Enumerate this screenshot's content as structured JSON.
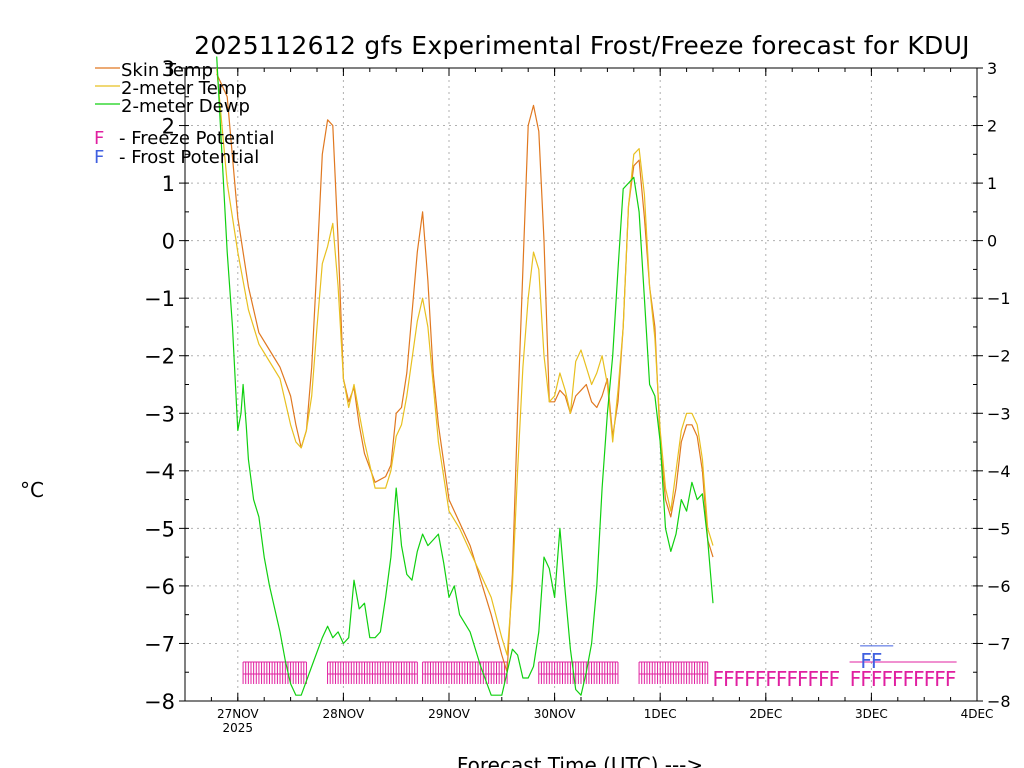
{
  "chart_data": {
    "type": "line",
    "title": "2025112612 gfs Experimental Frost/Freeze forecast for KDUJ",
    "xlabel": "Forecast Time (UTC) --->",
    "ylabel": "°C",
    "ylim": [
      -8,
      3
    ],
    "xlim": [
      -0.5,
      7.0
    ],
    "y_ticks": [
      -8,
      -7,
      -6,
      -5,
      -4,
      -3,
      -2,
      -1,
      0,
      1,
      2,
      3
    ],
    "x_ticks": [
      {
        "value": 0,
        "label": "27NOV",
        "sublabel": "2025"
      },
      {
        "value": 1,
        "label": "28NOV",
        "sublabel": ""
      },
      {
        "value": 2,
        "label": "29NOV",
        "sublabel": ""
      },
      {
        "value": 3,
        "label": "30NOV",
        "sublabel": ""
      },
      {
        "value": 4,
        "label": "1DEC",
        "sublabel": ""
      },
      {
        "value": 5,
        "label": "2DEC",
        "sublabel": ""
      },
      {
        "value": 6,
        "label": "3DEC",
        "sublabel": ""
      },
      {
        "value": 7,
        "label": "4DEC",
        "sublabel": ""
      }
    ],
    "grid": true,
    "legend": [
      {
        "label": "Skin Temp",
        "color": "#e07820"
      },
      {
        "label": "2-meter Temp",
        "color": "#e8c020"
      },
      {
        "label": "2-meter Dewp",
        "color": "#10d010"
      }
    ],
    "potential_legend": [
      {
        "marker": "F",
        "text": "- Freeze Potential",
        "color": "#e020a0"
      },
      {
        "marker": "F",
        "text": "- Frost Potential",
        "color": "#4060e0"
      }
    ],
    "series": [
      {
        "name": "Skin Temp",
        "color": "#e07820",
        "points": [
          [
            -0.2,
            2.9
          ],
          [
            -0.1,
            2.5
          ],
          [
            0,
            0.4
          ],
          [
            0.1,
            -0.8
          ],
          [
            0.2,
            -1.6
          ],
          [
            0.3,
            -1.9
          ],
          [
            0.4,
            -2.2
          ],
          [
            0.5,
            -2.7
          ],
          [
            0.55,
            -3.2
          ],
          [
            0.6,
            -3.6
          ],
          [
            0.65,
            -3.3
          ],
          [
            0.7,
            -2.2
          ],
          [
            0.75,
            -0.4
          ],
          [
            0.8,
            1.5
          ],
          [
            0.85,
            2.1
          ],
          [
            0.9,
            2.0
          ],
          [
            0.95,
            0.0
          ],
          [
            1.0,
            -2.4
          ],
          [
            1.05,
            -2.8
          ],
          [
            1.1,
            -2.55
          ],
          [
            1.15,
            -3.2
          ],
          [
            1.2,
            -3.7
          ],
          [
            1.3,
            -4.2
          ],
          [
            1.4,
            -4.1
          ],
          [
            1.45,
            -3.9
          ],
          [
            1.5,
            -3.0
          ],
          [
            1.55,
            -2.9
          ],
          [
            1.6,
            -2.3
          ],
          [
            1.7,
            -0.2
          ],
          [
            1.75,
            0.5
          ],
          [
            1.8,
            -0.7
          ],
          [
            1.85,
            -2.3
          ],
          [
            1.9,
            -3.2
          ],
          [
            2.0,
            -4.5
          ],
          [
            2.1,
            -4.9
          ],
          [
            2.2,
            -5.3
          ],
          [
            2.3,
            -5.9
          ],
          [
            2.4,
            -6.5
          ],
          [
            2.5,
            -7.2
          ],
          [
            2.55,
            -7.5
          ],
          [
            2.6,
            -5.8
          ],
          [
            2.65,
            -3.0
          ],
          [
            2.7,
            -0.5
          ],
          [
            2.75,
            2.0
          ],
          [
            2.8,
            2.35
          ],
          [
            2.85,
            1.9
          ],
          [
            2.9,
            0.0
          ],
          [
            2.95,
            -2.8
          ],
          [
            3.0,
            -2.8
          ],
          [
            3.05,
            -2.6
          ],
          [
            3.1,
            -2.7
          ],
          [
            3.15,
            -3.0
          ],
          [
            3.2,
            -2.7
          ],
          [
            3.25,
            -2.6
          ],
          [
            3.3,
            -2.5
          ],
          [
            3.35,
            -2.8
          ],
          [
            3.4,
            -2.9
          ],
          [
            3.45,
            -2.7
          ],
          [
            3.5,
            -2.4
          ],
          [
            3.55,
            -3.4
          ],
          [
            3.6,
            -2.8
          ],
          [
            3.65,
            -1.5
          ],
          [
            3.7,
            0.6
          ],
          [
            3.75,
            1.3
          ],
          [
            3.8,
            1.4
          ],
          [
            3.85,
            0.4
          ],
          [
            3.9,
            -0.8
          ],
          [
            3.95,
            -1.5
          ],
          [
            4.0,
            -3.5
          ],
          [
            4.05,
            -4.5
          ],
          [
            4.1,
            -4.8
          ],
          [
            4.15,
            -4.3
          ],
          [
            4.2,
            -3.5
          ],
          [
            4.25,
            -3.2
          ],
          [
            4.3,
            -3.2
          ],
          [
            4.35,
            -3.4
          ],
          [
            4.4,
            -4.0
          ],
          [
            4.45,
            -5.2
          ],
          [
            4.5,
            -5.5
          ]
        ]
      },
      {
        "name": "2-meter Temp",
        "color": "#e8c020",
        "points": [
          [
            -0.2,
            3.0
          ],
          [
            -0.1,
            1.0
          ],
          [
            0,
            -0.2
          ],
          [
            0.1,
            -1.2
          ],
          [
            0.2,
            -1.8
          ],
          [
            0.3,
            -2.1
          ],
          [
            0.4,
            -2.4
          ],
          [
            0.5,
            -3.2
          ],
          [
            0.55,
            -3.5
          ],
          [
            0.6,
            -3.6
          ],
          [
            0.65,
            -3.3
          ],
          [
            0.7,
            -2.7
          ],
          [
            0.75,
            -1.5
          ],
          [
            0.8,
            -0.4
          ],
          [
            0.85,
            -0.1
          ],
          [
            0.9,
            0.3
          ],
          [
            0.95,
            -0.8
          ],
          [
            1.0,
            -2.4
          ],
          [
            1.05,
            -2.9
          ],
          [
            1.1,
            -2.5
          ],
          [
            1.15,
            -3.0
          ],
          [
            1.2,
            -3.5
          ],
          [
            1.3,
            -4.3
          ],
          [
            1.4,
            -4.3
          ],
          [
            1.45,
            -4.0
          ],
          [
            1.5,
            -3.4
          ],
          [
            1.55,
            -3.2
          ],
          [
            1.6,
            -2.7
          ],
          [
            1.7,
            -1.4
          ],
          [
            1.75,
            -1.0
          ],
          [
            1.8,
            -1.5
          ],
          [
            1.85,
            -2.5
          ],
          [
            1.9,
            -3.5
          ],
          [
            2.0,
            -4.7
          ],
          [
            2.1,
            -5.0
          ],
          [
            2.2,
            -5.4
          ],
          [
            2.3,
            -5.8
          ],
          [
            2.4,
            -6.2
          ],
          [
            2.5,
            -6.9
          ],
          [
            2.55,
            -7.2
          ],
          [
            2.6,
            -6.0
          ],
          [
            2.65,
            -4.0
          ],
          [
            2.7,
            -2.2
          ],
          [
            2.75,
            -1.0
          ],
          [
            2.8,
            -0.2
          ],
          [
            2.85,
            -0.5
          ],
          [
            2.9,
            -2.0
          ],
          [
            2.95,
            -2.8
          ],
          [
            3.0,
            -2.7
          ],
          [
            3.05,
            -2.3
          ],
          [
            3.1,
            -2.6
          ],
          [
            3.15,
            -3.0
          ],
          [
            3.2,
            -2.1
          ],
          [
            3.25,
            -1.9
          ],
          [
            3.3,
            -2.2
          ],
          [
            3.35,
            -2.5
          ],
          [
            3.4,
            -2.3
          ],
          [
            3.45,
            -2.0
          ],
          [
            3.5,
            -2.5
          ],
          [
            3.55,
            -3.5
          ],
          [
            3.6,
            -2.6
          ],
          [
            3.65,
            -1.5
          ],
          [
            3.7,
            0.6
          ],
          [
            3.75,
            1.5
          ],
          [
            3.8,
            1.6
          ],
          [
            3.85,
            0.8
          ],
          [
            3.9,
            -0.8
          ],
          [
            3.95,
            -1.7
          ],
          [
            4.0,
            -3.3
          ],
          [
            4.05,
            -4.3
          ],
          [
            4.1,
            -4.7
          ],
          [
            4.15,
            -4.0
          ],
          [
            4.2,
            -3.3
          ],
          [
            4.25,
            -3.0
          ],
          [
            4.3,
            -3.0
          ],
          [
            4.35,
            -3.2
          ],
          [
            4.4,
            -3.8
          ],
          [
            4.45,
            -5.0
          ],
          [
            4.5,
            -5.3
          ]
        ]
      },
      {
        "name": "2-meter Dewp",
        "color": "#10d010",
        "points": [
          [
            -0.2,
            3.2
          ],
          [
            -0.1,
            -0.2
          ],
          [
            -0.05,
            -1.5
          ],
          [
            0,
            -3.3
          ],
          [
            0.03,
            -3.0
          ],
          [
            0.05,
            -2.5
          ],
          [
            0.08,
            -3.2
          ],
          [
            0.1,
            -3.8
          ],
          [
            0.15,
            -4.5
          ],
          [
            0.2,
            -4.8
          ],
          [
            0.25,
            -5.5
          ],
          [
            0.3,
            -6.0
          ],
          [
            0.4,
            -6.8
          ],
          [
            0.45,
            -7.3
          ],
          [
            0.5,
            -7.7
          ],
          [
            0.55,
            -7.9
          ],
          [
            0.6,
            -7.9
          ],
          [
            0.7,
            -7.4
          ],
          [
            0.8,
            -6.9
          ],
          [
            0.85,
            -6.7
          ],
          [
            0.9,
            -6.9
          ],
          [
            0.95,
            -6.8
          ],
          [
            1.0,
            -7.0
          ],
          [
            1.05,
            -6.9
          ],
          [
            1.1,
            -5.9
          ],
          [
            1.15,
            -6.4
          ],
          [
            1.2,
            -6.3
          ],
          [
            1.25,
            -6.9
          ],
          [
            1.3,
            -6.9
          ],
          [
            1.35,
            -6.8
          ],
          [
            1.4,
            -6.2
          ],
          [
            1.45,
            -5.5
          ],
          [
            1.5,
            -4.3
          ],
          [
            1.55,
            -5.3
          ],
          [
            1.6,
            -5.8
          ],
          [
            1.65,
            -5.9
          ],
          [
            1.7,
            -5.4
          ],
          [
            1.75,
            -5.1
          ],
          [
            1.8,
            -5.3
          ],
          [
            1.85,
            -5.2
          ],
          [
            1.9,
            -5.1
          ],
          [
            1.95,
            -5.6
          ],
          [
            2.0,
            -6.2
          ],
          [
            2.05,
            -6.0
          ],
          [
            2.1,
            -6.5
          ],
          [
            2.2,
            -6.8
          ],
          [
            2.3,
            -7.4
          ],
          [
            2.4,
            -7.9
          ],
          [
            2.5,
            -7.9
          ],
          [
            2.55,
            -7.5
          ],
          [
            2.6,
            -7.1
          ],
          [
            2.65,
            -7.2
          ],
          [
            2.7,
            -7.6
          ],
          [
            2.75,
            -7.6
          ],
          [
            2.8,
            -7.4
          ],
          [
            2.85,
            -6.8
          ],
          [
            2.9,
            -5.5
          ],
          [
            2.95,
            -5.7
          ],
          [
            3.0,
            -6.2
          ],
          [
            3.05,
            -5.0
          ],
          [
            3.1,
            -6.1
          ],
          [
            3.15,
            -7.1
          ],
          [
            3.2,
            -7.8
          ],
          [
            3.25,
            -7.9
          ],
          [
            3.3,
            -7.5
          ],
          [
            3.35,
            -7.0
          ],
          [
            3.4,
            -6.0
          ],
          [
            3.45,
            -4.3
          ],
          [
            3.5,
            -3.0
          ],
          [
            3.55,
            -2.0
          ],
          [
            3.6,
            -0.5
          ],
          [
            3.65,
            0.9
          ],
          [
            3.7,
            1.0
          ],
          [
            3.75,
            1.1
          ],
          [
            3.8,
            0.5
          ],
          [
            3.85,
            -1.0
          ],
          [
            3.9,
            -2.5
          ],
          [
            3.95,
            -2.7
          ],
          [
            4.0,
            -3.5
          ],
          [
            4.05,
            -5.0
          ],
          [
            4.1,
            -5.4
          ],
          [
            4.15,
            -5.1
          ],
          [
            4.2,
            -4.5
          ],
          [
            4.25,
            -4.7
          ],
          [
            4.3,
            -4.2
          ],
          [
            4.35,
            -4.5
          ],
          [
            4.4,
            -4.4
          ],
          [
            4.45,
            -5.2
          ],
          [
            4.5,
            -6.3
          ]
        ]
      }
    ],
    "freeze_potential": {
      "color": "#e020a0",
      "marker": "F",
      "value": -7.6,
      "segments": [
        [
          0.05,
          0.65
        ],
        [
          0.85,
          1.7
        ],
        [
          1.75,
          2.55
        ],
        [
          2.85,
          3.6
        ],
        [
          3.8,
          4.45
        ]
      ],
      "sparse_marks": [
        4.55,
        4.65,
        4.75,
        4.85,
        4.95,
        5.05,
        5.15,
        5.25,
        5.35,
        5.45,
        5.55,
        5.65,
        5.85,
        5.95,
        6.05,
        6.15,
        6.25,
        6.35,
        6.45,
        6.55,
        6.65,
        6.75
      ]
    },
    "frost_potential": {
      "color": "#4060e0",
      "marker": "F",
      "value": -7.25,
      "segments": [
        [
          5.95,
          6.15
        ]
      ],
      "marks": [
        5.95,
        6.05
      ]
    }
  }
}
